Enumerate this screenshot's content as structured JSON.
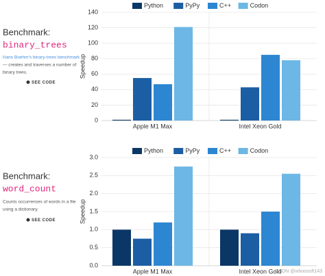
{
  "panels": [
    {
      "heading": "Benchmark:",
      "name": "binary_trees",
      "link": "Hans Boehm's binary-trees benchmark",
      "description": [
        "— creates and traverses a number of",
        "binary trees."
      ],
      "button": "SEE CODE"
    },
    {
      "heading": "Benchmark:",
      "name": "word_count",
      "description": [
        "Counts occurrences of words in a file",
        "using a dictionary."
      ],
      "button": "SEE CODE"
    }
  ],
  "chart_data": [
    {
      "type": "bar",
      "y_label": "Speedup",
      "categories": [
        "Apple M1 Max",
        "Intel Xeon Gold"
      ],
      "series": [
        {
          "name": "Python",
          "color": "#0b3766",
          "values": [
            1,
            1
          ]
        },
        {
          "name": "PyPy",
          "color": "#1b5ea3",
          "values": [
            55,
            43
          ]
        },
        {
          "name": "C++",
          "color": "#2c86d1",
          "values": [
            47,
            85
          ]
        },
        {
          "name": "Codon",
          "color": "#6cb7e5",
          "values": [
            121,
            78
          ]
        }
      ],
      "ylim": [
        0,
        140
      ],
      "yticks": [
        0,
        20,
        40,
        60,
        80,
        100,
        120,
        140
      ],
      "grid": true
    },
    {
      "type": "bar",
      "y_label": "Speedup",
      "categories": [
        "Apple M1 Max",
        "Intel Xeon Gold"
      ],
      "series": [
        {
          "name": "Python",
          "color": "#0b3766",
          "values": [
            1.0,
            1.0
          ]
        },
        {
          "name": "PyPy",
          "color": "#1b5ea3",
          "values": [
            0.75,
            0.9
          ]
        },
        {
          "name": "C++",
          "color": "#2c86d1",
          "values": [
            1.2,
            1.5
          ]
        },
        {
          "name": "Codon",
          "color": "#6cb7e5",
          "values": [
            2.75,
            2.55
          ]
        }
      ],
      "ylim": [
        0,
        3
      ],
      "yticks": [
        {
          "value": 0,
          "label": "0.0"
        },
        {
          "value": 0.5,
          "label": "0.5"
        },
        {
          "value": 1,
          "label": "1.0"
        },
        {
          "value": 1.5,
          "label": "1.5"
        },
        {
          "value": 2,
          "label": "2.0"
        },
        {
          "value": 2.5,
          "label": "2.5"
        },
        {
          "value": 3,
          "label": "3.0"
        }
      ],
      "grid": true
    }
  ],
  "watermark": "CSDN @whoosoft143"
}
